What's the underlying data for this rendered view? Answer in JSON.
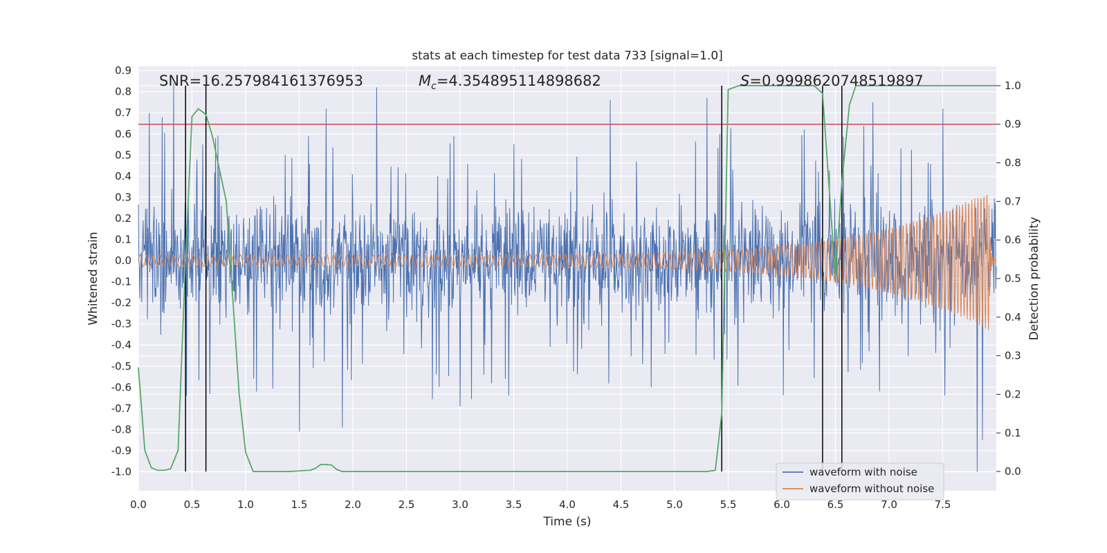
{
  "chart_data": {
    "type": "line",
    "title": "stats at each timestep for test data 733 [signal=1.0]",
    "xlabel": "Time (s)",
    "ylabel": "Whitened strain",
    "y2label": "Detection probability",
    "xlim": [
      0.0,
      8.0
    ],
    "ylim": [
      -1.09,
      0.92
    ],
    "y2lim": [
      -0.05,
      1.05
    ],
    "x_ticks": [
      "0.0",
      "0.5",
      "1.0",
      "1.5",
      "2.0",
      "2.5",
      "3.0",
      "3.5",
      "4.0",
      "4.5",
      "5.0",
      "5.5",
      "6.0",
      "6.5",
      "7.0",
      "7.5"
    ],
    "y_ticks": [
      "-1.0",
      "-0.9",
      "-0.8",
      "-0.7",
      "-0.6",
      "-0.5",
      "-0.4",
      "-0.3",
      "-0.2",
      "-0.1",
      "0.0",
      "0.1",
      "0.2",
      "0.3",
      "0.4",
      "0.5",
      "0.6",
      "0.7",
      "0.8",
      "0.9"
    ],
    "y2_ticks": [
      "0.0",
      "0.1",
      "0.2",
      "0.3",
      "0.4",
      "0.5",
      "0.6",
      "0.7",
      "0.8",
      "0.9",
      "1.0"
    ],
    "annotations": {
      "snr": "SNR=16.257984161376953",
      "mc_symbol": "M",
      "mc_sub": "c",
      "mc_value": "=4.354895114898682",
      "s_symbol": "S",
      "s_value": "=0.9998620748519897"
    },
    "threshold": 0.9,
    "vlines": [
      0.44,
      0.63,
      5.44,
      6.38,
      6.56
    ],
    "legend": {
      "position": "lower-right",
      "entries": [
        "waveform with noise",
        "waveform without noise"
      ]
    },
    "series": [
      {
        "name": "waveform with noise",
        "color": "#4c72b0",
        "axis": "left",
        "typical_envelope": [
          -0.32,
          0.32
        ],
        "peak_range": [
          -1.0,
          0.84
        ],
        "peaks": [
          [
            0.1,
            0.7
          ],
          [
            0.22,
            0.68
          ],
          [
            0.33,
            0.84
          ],
          [
            0.45,
            -0.64
          ],
          [
            0.6,
            0.55
          ],
          [
            0.72,
            0.58
          ],
          [
            1.1,
            -0.62
          ],
          [
            1.5,
            -0.81
          ],
          [
            1.75,
            0.72
          ],
          [
            1.9,
            -0.79
          ],
          [
            2.22,
            0.82
          ],
          [
            3.0,
            -0.69
          ],
          [
            4.4,
            0.76
          ],
          [
            5.3,
            0.77
          ],
          [
            6.85,
            0.75
          ],
          [
            7.5,
            0.72
          ],
          [
            7.82,
            -1.0
          ],
          [
            7.87,
            -0.85
          ]
        ]
      },
      {
        "name": "waveform without noise",
        "color": "#dd8452",
        "axis": "left",
        "amplitude_start": 0.028,
        "amplitude_end": 0.33,
        "merger_time": 7.93,
        "end_time": 8.0
      },
      {
        "name": "detection probability",
        "color": "#55a868",
        "axis": "right",
        "x": [
          0.0,
          0.06,
          0.12,
          0.18,
          0.24,
          0.3,
          0.37,
          0.44,
          0.5,
          0.56,
          0.63,
          0.69,
          0.75,
          0.82,
          0.88,
          0.94,
          1.0,
          1.07,
          1.13,
          1.4,
          1.6,
          1.65,
          1.7,
          1.75,
          1.8,
          1.85,
          1.9,
          2.0,
          5.3,
          5.38,
          5.44,
          5.5,
          5.6,
          6.3,
          6.38,
          6.44,
          6.5,
          6.56,
          6.63,
          6.69,
          8.0
        ],
        "values": [
          0.27,
          0.055,
          0.01,
          0.003,
          0.003,
          0.007,
          0.055,
          0.55,
          0.92,
          0.94,
          0.925,
          0.87,
          0.79,
          0.7,
          0.45,
          0.2,
          0.05,
          0.0,
          0.0,
          0.0,
          0.003,
          0.008,
          0.018,
          0.018,
          0.017,
          0.005,
          0.0,
          0.0,
          0.0,
          0.003,
          0.15,
          0.99,
          1.0,
          1.0,
          0.98,
          0.74,
          0.5,
          0.75,
          0.95,
          1.0,
          1.0
        ]
      }
    ]
  }
}
